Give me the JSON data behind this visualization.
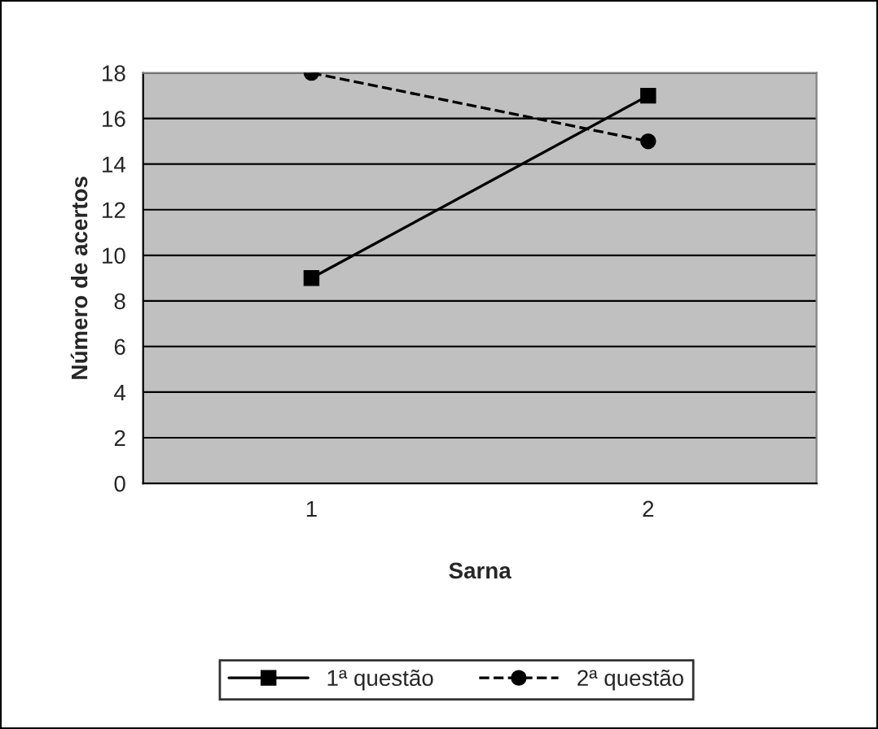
{
  "chart_data": {
    "type": "line",
    "xlabel": "Sarna",
    "ylabel": "Número de acertos",
    "categories": [
      "1",
      "2"
    ],
    "series": [
      {
        "name": "1ª questão",
        "color": "#000000",
        "values": [
          9,
          17
        ],
        "marker": "square",
        "line_style": "solid"
      },
      {
        "name": "2ª questão",
        "color": "#000000",
        "values": [
          18,
          15
        ],
        "marker": "circle",
        "line_style": "dashed"
      }
    ],
    "ylim": [
      0,
      18
    ],
    "yticks": [
      0,
      2,
      4,
      6,
      8,
      10,
      12,
      14,
      16,
      18
    ],
    "grid": "y",
    "legend": "bottom"
  }
}
